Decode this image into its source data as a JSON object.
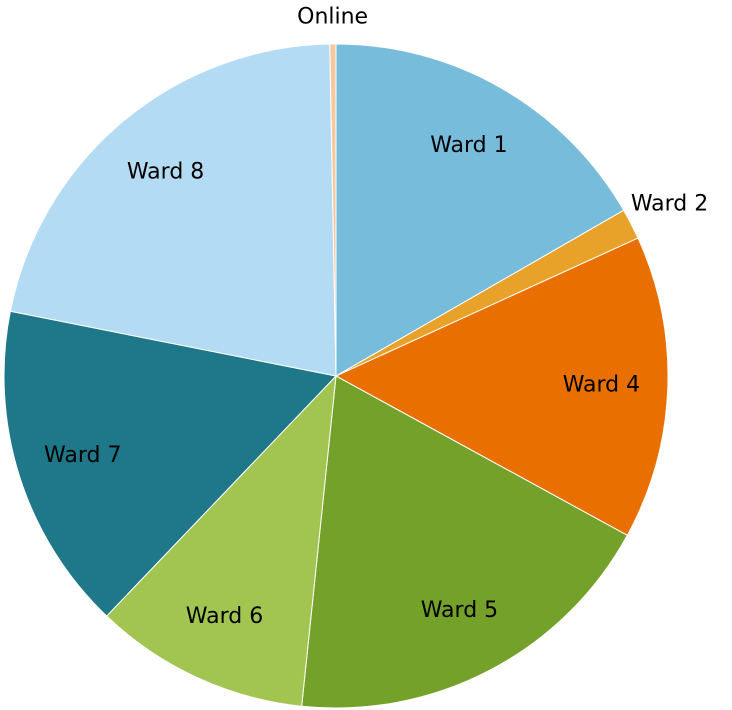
{
  "chart_data": {
    "type": "pie",
    "categories": [
      "Ward 1",
      "Ward 2",
      "Ward 4",
      "Ward 5",
      "Ward 6",
      "Ward 7",
      "Ward 8",
      "Online"
    ],
    "values": [
      16.7,
      1.5,
      14.8,
      18.7,
      10.5,
      16,
      21.6,
      0.3
    ],
    "colors": [
      "#78bcdc",
      "#e8a22a",
      "#e97000",
      "#74a12a",
      "#a2c450",
      "#1f7889",
      "#b4dbf4",
      "#f5c8a0"
    ]
  }
}
